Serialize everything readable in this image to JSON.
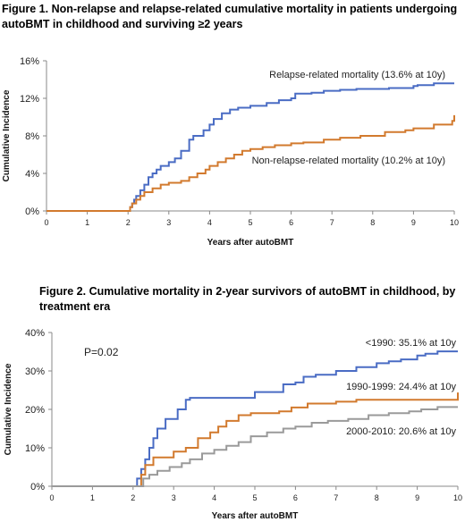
{
  "figures": [
    {
      "title": "Figure 1. Non-relapse and relapse-related cumulative mortality in patients undergoing autoBMT in childhood and surviving ≥2 years"
    },
    {
      "title": "Figure 2. Cumulative mortality in 2-year survivors of autoBMT in childhood, by treatment era"
    }
  ],
  "chart_data": [
    {
      "type": "line",
      "title": "Figure 1. Non-relapse and relapse-related cumulative mortality in patients undergoing autoBMT in childhood and surviving ≥2 years",
      "xlabel": "Years after autoBMT",
      "ylabel": "Cumulative Incidence",
      "xlim": [
        0,
        10
      ],
      "ylim": [
        0,
        16
      ],
      "x_ticks": [
        "0",
        "1",
        "2",
        "3",
        "4",
        "5",
        "6",
        "7",
        "8",
        "9",
        "10"
      ],
      "y_ticks": [
        "0%",
        "4%",
        "8%",
        "12%",
        "16%"
      ],
      "grid": false,
      "legend": "inline labels",
      "colors": {
        "relapse": "#4a6cc4",
        "nonrelapse": "#d27a2e"
      },
      "series": [
        {
          "key": "relapse",
          "label": "Relapse-related mortality (13.6% at 10y)",
          "x": [
            0,
            2.0,
            2.05,
            2.1,
            2.15,
            2.2,
            2.3,
            2.4,
            2.5,
            2.6,
            2.7,
            2.8,
            3.0,
            3.15,
            3.3,
            3.5,
            3.6,
            3.85,
            4.0,
            4.1,
            4.3,
            4.5,
            4.7,
            5.0,
            5.4,
            5.7,
            6.0,
            6.1,
            6.5,
            6.8,
            7.2,
            7.6,
            8.0,
            8.4,
            8.7,
            9.0,
            9.1,
            9.5,
            10.0
          ],
          "y": [
            0,
            0,
            0.4,
            0.8,
            1.2,
            1.6,
            2.2,
            2.8,
            3.6,
            4.0,
            4.4,
            4.8,
            5.2,
            5.6,
            6.4,
            7.6,
            8.0,
            8.6,
            9.2,
            9.8,
            10.4,
            10.8,
            11.0,
            11.2,
            11.5,
            11.8,
            12.0,
            12.5,
            12.6,
            12.8,
            12.9,
            13.0,
            13.0,
            13.1,
            13.1,
            13.3,
            13.4,
            13.6,
            13.6
          ]
        },
        {
          "key": "nonrelapse",
          "label": "Non-relapse-related mortality (10.2% at 10y)",
          "x": [
            0,
            2.0,
            2.05,
            2.1,
            2.2,
            2.3,
            2.4,
            2.6,
            2.8,
            3.0,
            3.3,
            3.5,
            3.7,
            3.9,
            4.0,
            4.2,
            4.4,
            4.6,
            4.8,
            5.0,
            5.3,
            5.6,
            6.0,
            6.3,
            6.8,
            7.2,
            7.7,
            8.3,
            8.8,
            9.0,
            9.5,
            9.95,
            10.0
          ],
          "y": [
            0,
            0,
            0.4,
            0.8,
            1.2,
            1.6,
            2.0,
            2.4,
            2.8,
            3.0,
            3.2,
            3.6,
            4.0,
            4.4,
            4.8,
            5.2,
            5.6,
            6.0,
            6.4,
            6.6,
            6.8,
            7.0,
            7.2,
            7.3,
            7.6,
            7.8,
            8.0,
            8.4,
            8.6,
            8.8,
            9.2,
            9.6,
            10.2
          ]
        }
      ]
    },
    {
      "type": "line",
      "title": "Figure 2. Cumulative mortality in 2-year survivors of autoBMT in childhood, by treatment era",
      "xlabel": "Years after autoBMT",
      "ylabel": "Cumulative Incidence",
      "xlim": [
        0,
        10
      ],
      "ylim": [
        0,
        40
      ],
      "x_ticks": [
        "0",
        "1",
        "2",
        "3",
        "4",
        "5",
        "6",
        "7",
        "8",
        "9",
        "10"
      ],
      "y_ticks": [
        "0%",
        "10%",
        "20%",
        "30%",
        "40%"
      ],
      "grid": false,
      "annotation": "P=0.02",
      "legend": "inline labels",
      "colors": {
        "pre1990": "#4a6cc4",
        "1990s": "#d27a2e",
        "2000s": "#9a9a9a"
      },
      "series": [
        {
          "key": "pre1990",
          "label": "<1990: 35.1% at 10y",
          "x": [
            0,
            2.0,
            2.1,
            2.2,
            2.3,
            2.4,
            2.5,
            2.6,
            2.8,
            3.0,
            3.1,
            3.3,
            3.4,
            4.0,
            5.0,
            5.5,
            5.7,
            6.0,
            6.2,
            6.5,
            7.0,
            7.5,
            8.0,
            8.3,
            8.6,
            9.0,
            9.2,
            9.5,
            10.0
          ],
          "y": [
            0,
            0,
            2.0,
            4.5,
            7.0,
            10.0,
            12.5,
            15.0,
            17.5,
            17.5,
            20.0,
            22.5,
            23.0,
            23.0,
            24.5,
            24.5,
            26.5,
            27.0,
            28.5,
            29.0,
            30.0,
            31.0,
            32.0,
            32.5,
            33.0,
            34.0,
            34.5,
            35.1,
            35.1
          ]
        },
        {
          "key": "1990s",
          "label": "1990-1999: 24.4% at 10y",
          "x": [
            0,
            2.0,
            2.2,
            2.3,
            2.5,
            2.8,
            3.0,
            3.3,
            3.6,
            3.9,
            4.1,
            4.3,
            4.6,
            4.9,
            5.2,
            5.6,
            5.9,
            6.3,
            7.0,
            7.5,
            8.0,
            9.0,
            9.95,
            10.0
          ],
          "y": [
            0,
            0,
            3.0,
            5.5,
            7.5,
            7.5,
            9.0,
            10.0,
            12.5,
            14.0,
            15.5,
            17.0,
            18.5,
            19.0,
            19.0,
            19.5,
            20.5,
            21.5,
            22.0,
            22.5,
            22.5,
            22.5,
            22.5,
            24.4
          ]
        },
        {
          "key": "2000s",
          "label": "2000-2010: 20.6% at 10y",
          "x": [
            0,
            2.0,
            2.25,
            2.4,
            2.6,
            2.9,
            3.2,
            3.4,
            3.7,
            4.0,
            4.3,
            4.6,
            4.9,
            5.3,
            5.7,
            6.0,
            6.4,
            6.8,
            7.3,
            7.8,
            8.3,
            8.8,
            9.1,
            9.5,
            10.0
          ],
          "y": [
            0,
            0,
            2.0,
            3.0,
            4.0,
            5.0,
            6.0,
            7.0,
            8.5,
            9.5,
            10.5,
            11.5,
            13.0,
            14.0,
            15.0,
            15.5,
            16.5,
            17.0,
            17.5,
            18.5,
            19.0,
            19.5,
            20.0,
            20.6,
            20.6
          ]
        }
      ]
    }
  ]
}
